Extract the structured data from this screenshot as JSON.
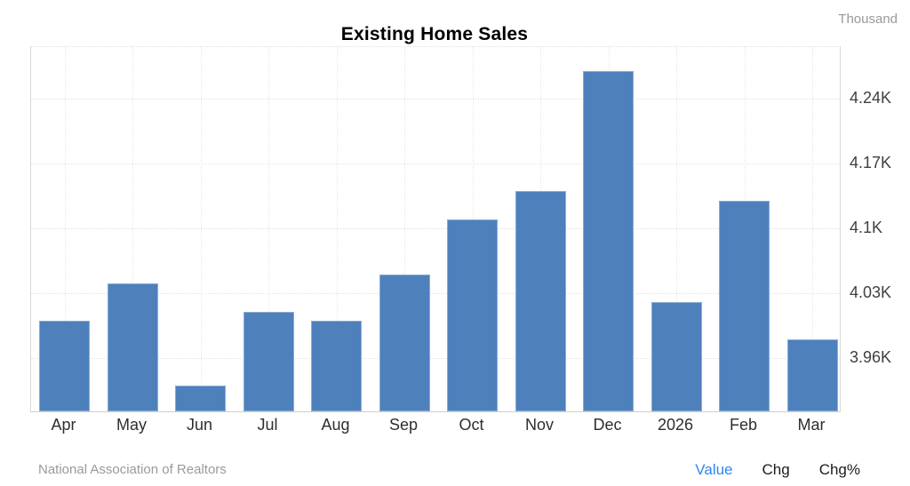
{
  "header": {
    "title": "Existing Home Sales",
    "unit_label": "Thousand"
  },
  "footer": {
    "source": "National Association of Realtors",
    "modes": [
      {
        "label": "Value",
        "active": true
      },
      {
        "label": "Chg",
        "active": false
      },
      {
        "label": "Chg%",
        "active": false
      }
    ]
  },
  "colors": {
    "bar": "#4e80bc",
    "active_mode": "#2d87f0",
    "inactive_mode": "#1b1b1f",
    "grid": "#e3e3e3",
    "axis": "#cfcfcf",
    "tick_text": "#404040",
    "muted_text": "#999999"
  },
  "chart_data": {
    "type": "bar",
    "title": "Existing Home Sales",
    "unit": "Thousand",
    "source": "National Association of Realtors",
    "categories": [
      "Apr",
      "May",
      "Jun",
      "Jul",
      "Aug",
      "Sep",
      "Oct",
      "Nov",
      "Dec",
      "2026",
      "Feb",
      "Mar"
    ],
    "values": [
      4.0,
      4.04,
      3.93,
      4.01,
      4.0,
      4.05,
      4.11,
      4.14,
      4.27,
      4.02,
      4.13,
      3.98
    ],
    "yticks": [
      {
        "value": 4.24,
        "label": "4.24K"
      },
      {
        "value": 4.17,
        "label": "4.17K"
      },
      {
        "value": 4.1,
        "label": "4.1K"
      },
      {
        "value": 4.03,
        "label": "4.03K"
      },
      {
        "value": 3.96,
        "label": "3.96K"
      }
    ],
    "ylim": [
      3.902,
      4.296
    ],
    "grid": true,
    "legend": "none",
    "yaxis_side": "right"
  }
}
